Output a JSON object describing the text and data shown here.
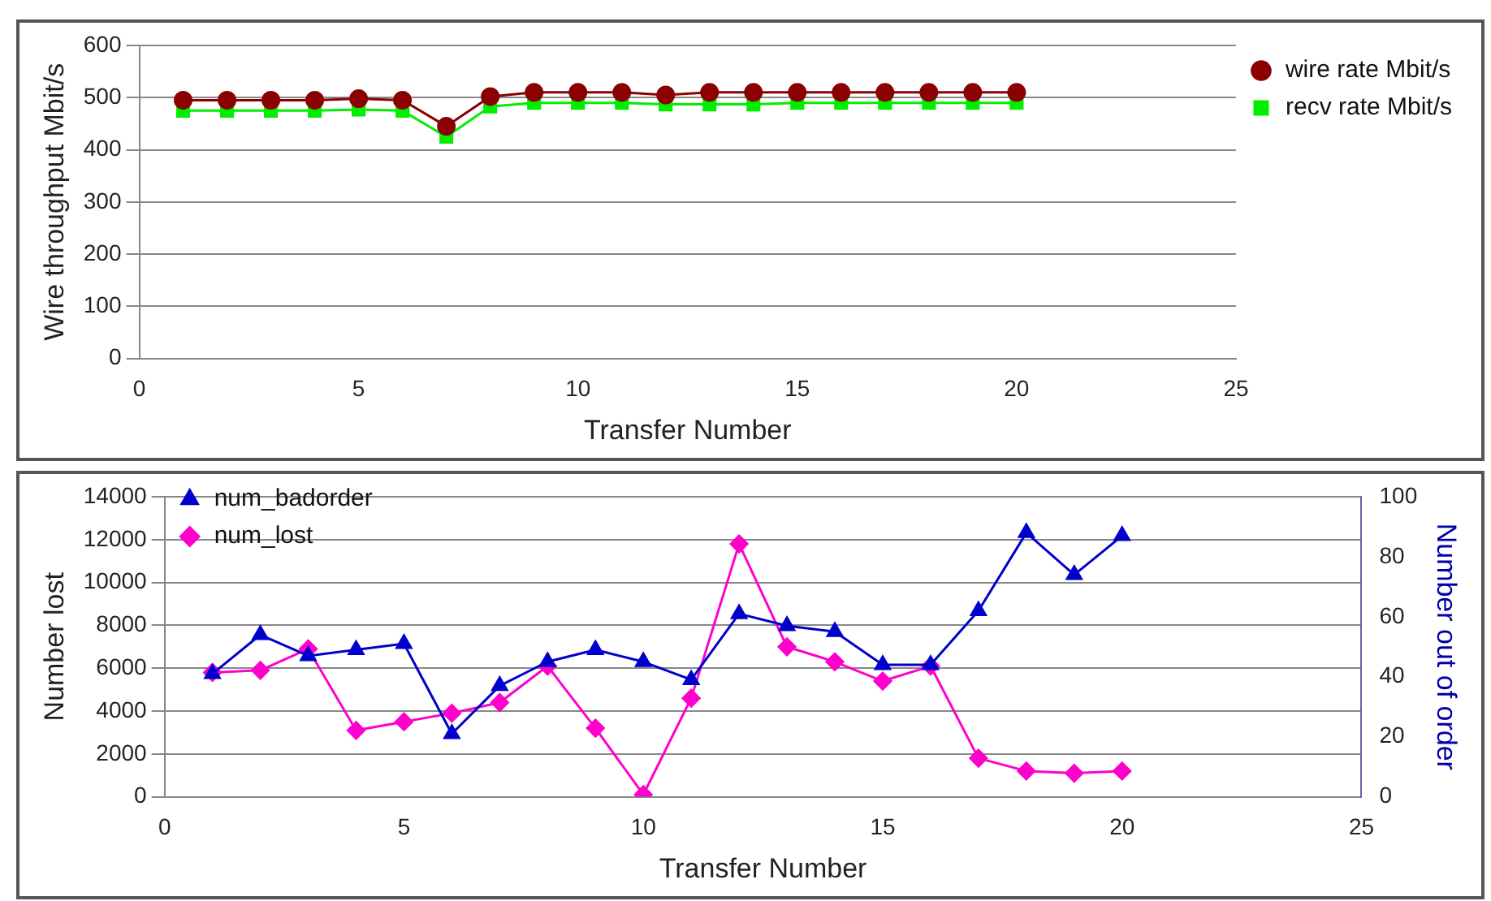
{
  "chart_data": [
    {
      "type": "line",
      "xlabel": "Transfer Number",
      "ylabel": "Wire throughput Mbit/s",
      "x": [
        1,
        2,
        3,
        4,
        5,
        6,
        7,
        8,
        9,
        10,
        11,
        12,
        13,
        14,
        15,
        16,
        17,
        18,
        19,
        20
      ],
      "series": [
        {
          "name": "recv rate Mbit/s",
          "color": "#00ee00",
          "marker": "square",
          "values": [
            475,
            475,
            475,
            475,
            477,
            475,
            425,
            483,
            490,
            490,
            490,
            487,
            487,
            487,
            490,
            490,
            490,
            490,
            490,
            490
          ]
        },
        {
          "name": "wire rate Mbit/s",
          "color": "#8b0000",
          "marker": "circle",
          "values": [
            495,
            495,
            495,
            495,
            498,
            495,
            445,
            502,
            510,
            510,
            510,
            505,
            510,
            510,
            510,
            510,
            510,
            510,
            510,
            510
          ]
        }
      ],
      "xlim": [
        0,
        25
      ],
      "xticks": [
        0,
        5,
        10,
        15,
        20,
        25
      ],
      "ylim": [
        0,
        600
      ],
      "yticks": [
        0,
        100,
        200,
        300,
        400,
        500,
        600
      ],
      "grid": "y",
      "legend": "top right"
    },
    {
      "type": "line",
      "xlabel": "Transfer Number",
      "ylabel": "Number lost",
      "y2label": "Number out of order",
      "x": [
        1,
        2,
        3,
        4,
        5,
        6,
        7,
        8,
        9,
        10,
        11,
        12,
        13,
        14,
        15,
        16,
        17,
        18,
        19,
        20
      ],
      "series": [
        {
          "name": "num_lost",
          "color": "#ff00cc",
          "marker": "diamond",
          "values": [
            5800,
            5900,
            6900,
            3100,
            3500,
            3900,
            4400,
            6100,
            3200,
            100,
            4600,
            11800,
            7000,
            6300,
            5400,
            6100,
            1800,
            1200,
            1100,
            1200
          ]
        },
        {
          "name": "num_badorder",
          "color": "#0000cc",
          "marker": "triangle",
          "axis": "y2",
          "values": [
            41,
            54,
            47,
            49,
            51,
            21,
            37,
            45,
            49,
            45,
            39,
            61,
            57,
            55,
            44,
            44,
            62,
            88,
            74,
            87
          ]
        }
      ],
      "xlim": [
        0,
        25
      ],
      "xticks": [
        0,
        5,
        10,
        15,
        20,
        25
      ],
      "ylim": [
        0,
        14000
      ],
      "yticks": [
        0,
        2000,
        4000,
        6000,
        8000,
        10000,
        12000,
        14000
      ],
      "y2lim": [
        0,
        100
      ],
      "y2ticks": [
        0,
        20,
        40,
        60,
        80,
        100
      ],
      "grid": "y",
      "legend": "top left"
    }
  ]
}
